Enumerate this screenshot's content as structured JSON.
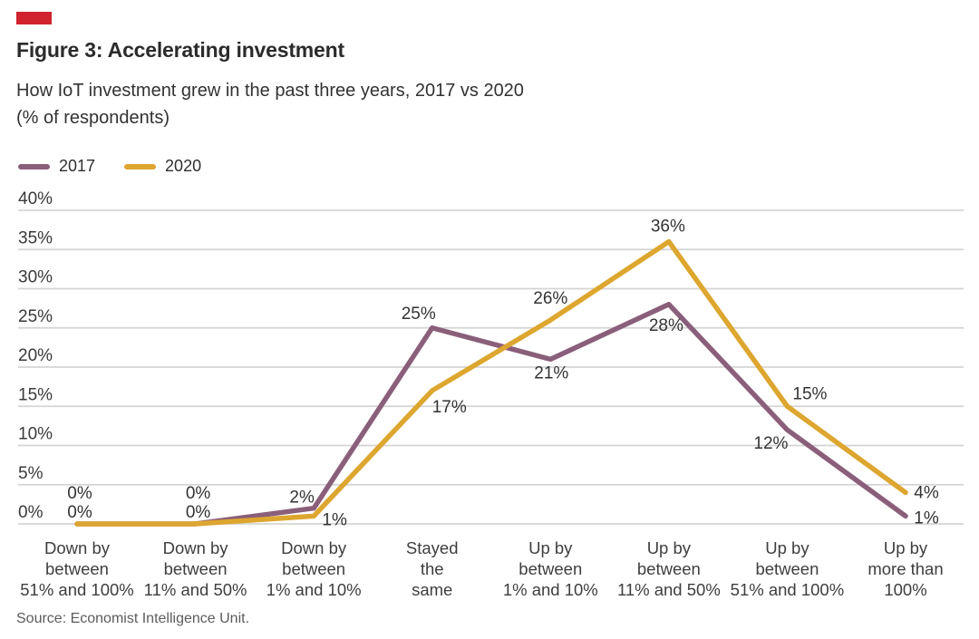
{
  "header": {
    "title": "Figure 3: Accelerating investment",
    "subtitle_line1": "How IoT investment grew in the past three years, 2017 vs 2020",
    "subtitle_line2": "(% of respondents)"
  },
  "accent_color": "#d0232e",
  "source_note": "Source: Economist Intelligence Unit.",
  "chart_data": {
    "type": "line",
    "title": "Figure 3: Accelerating investment",
    "subtitle": "How IoT investment grew in the past three years, 2017 vs 2020 (% of respondents)",
    "categories": [
      [
        "Down by",
        "between",
        "51% and 100%"
      ],
      [
        "Down by",
        "between",
        "11% and 50%"
      ],
      [
        "Down by",
        "between",
        "1% and 10%"
      ],
      [
        "Stayed",
        "the",
        "same"
      ],
      [
        "Up by",
        "between",
        "1% and 10%"
      ],
      [
        "Up by",
        "between",
        "11% and 50%"
      ],
      [
        "Up by",
        "between",
        "51% and 100%"
      ],
      [
        "Up by",
        "more than",
        "100%"
      ]
    ],
    "series": [
      {
        "name": "2017",
        "color": "#8a5f7a",
        "values": [
          0,
          0,
          2,
          25,
          21,
          28,
          12,
          1
        ],
        "label_offsets": [
          [
            3,
            -28
          ],
          [
            3,
            -28
          ],
          [
            -13,
            -6
          ],
          [
            -15,
            -10
          ],
          [
            1,
            21
          ],
          [
            -3,
            29
          ],
          [
            -18,
            21
          ],
          [
            23,
            8
          ]
        ]
      },
      {
        "name": "2020",
        "color": "#dda62f",
        "values": [
          0,
          0,
          1,
          17,
          26,
          36,
          15,
          4
        ],
        "label_offsets": [
          [
            3,
            -7
          ],
          [
            3,
            -7
          ],
          [
            23,
            10
          ],
          [
            19,
            24
          ],
          [
            0,
            -18
          ],
          [
            -1,
            -11
          ],
          [
            25,
            -8
          ],
          [
            23,
            6
          ]
        ]
      }
    ],
    "ylim": [
      0,
      40
    ],
    "yticks": [
      0,
      5,
      10,
      15,
      20,
      25,
      30,
      35,
      40
    ],
    "ytick_suffix": "%",
    "grid": "horizontal",
    "legend_position": "top-left",
    "gridline_color": "#d4d4d4",
    "label_color": "#333333"
  }
}
